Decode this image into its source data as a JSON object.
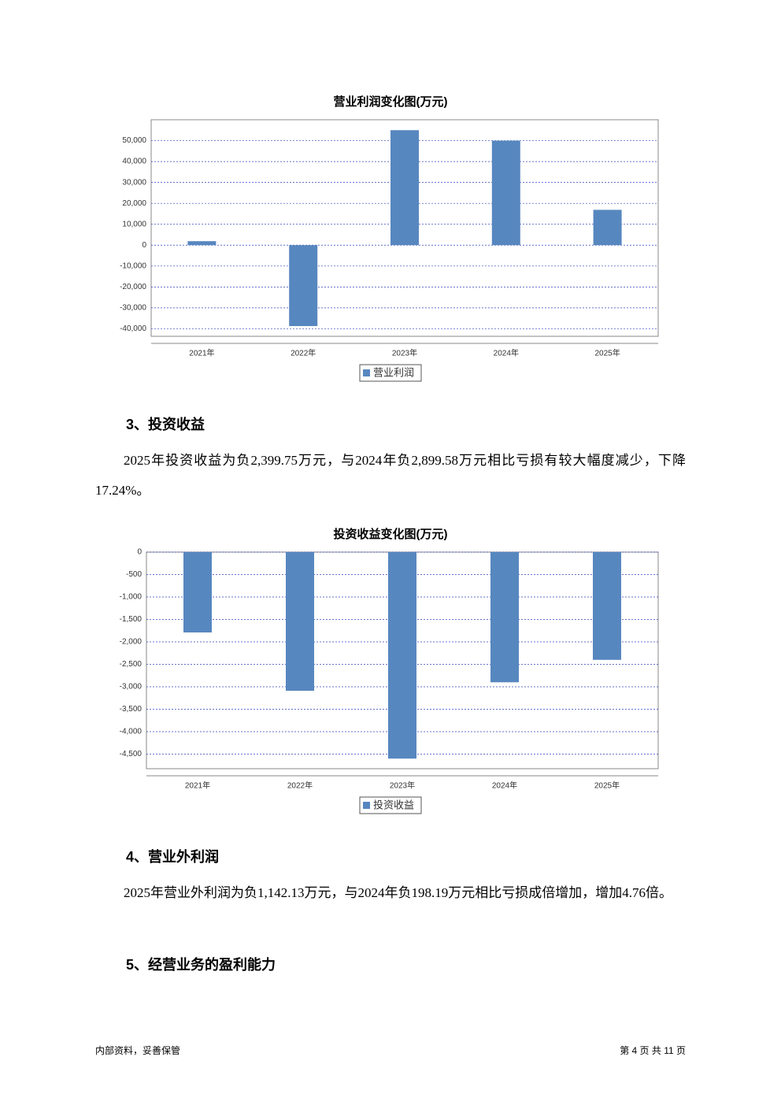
{
  "chart_data": [
    {
      "type": "bar",
      "title": "营业利润变化图(万元)",
      "categories": [
        "2021年",
        "2022年",
        "2023年",
        "2024年",
        "2025年"
      ],
      "series": [
        {
          "name": "营业利润",
          "color": "#5787bf",
          "values": [
            1900,
            -38700,
            55000,
            50000,
            16900
          ]
        }
      ],
      "ylim": [
        -43600,
        60000
      ],
      "yticks": [
        {
          "value": -40000,
          "label": "-40,000"
        },
        {
          "value": -30000,
          "label": "-30,000"
        },
        {
          "value": -20000,
          "label": "-20,000"
        },
        {
          "value": -10000,
          "label": "-10,000"
        },
        0,
        {
          "value": 10000,
          "label": "10,000"
        },
        {
          "value": 20000,
          "label": "20,000"
        },
        {
          "value": 30000,
          "label": "30,000"
        },
        {
          "value": 40000,
          "label": "40,000"
        },
        {
          "value": 50000,
          "label": "50,000"
        }
      ],
      "grid": true
    },
    {
      "type": "bar",
      "title": "投资收益变化图(万元)",
      "categories": [
        "2021年",
        "2022年",
        "2023年",
        "2024年",
        "2025年"
      ],
      "series": [
        {
          "name": "投资收益",
          "color": "#5787bf",
          "values": [
            -1790,
            -3090,
            -4600,
            -2900,
            -2400
          ]
        }
      ],
      "ylim": [
        -4825,
        0
      ],
      "yticks": [
        {
          "value": -4500,
          "label": "-4,500"
        },
        {
          "value": -4000,
          "label": "-4,000"
        },
        {
          "value": -3500,
          "label": "-3,500"
        },
        {
          "value": -3000,
          "label": "-3,000"
        },
        {
          "value": -2500,
          "label": "-2,500"
        },
        {
          "value": -2000,
          "label": "-2,000"
        },
        {
          "value": -1500,
          "label": "-1,500"
        },
        {
          "value": -1000,
          "label": "-1,000"
        },
        -500,
        0
      ],
      "grid": true
    }
  ],
  "sections": [
    {
      "heading": "3、投资收益",
      "text": "2025年投资收益为负2,399.75万元，与2024年负2,899.58万元相比亏损有较大幅度减少，下降17.24%。"
    },
    {
      "heading": "4、营业外利润",
      "text": "2025年营业外利润为负1,142.13万元，与2024年负198.19万元相比亏损成倍增加，增加4.76倍。"
    },
    {
      "heading": "5、经营业务的盈利能力"
    }
  ],
  "footer": {
    "left": "内部资料，妥善保管",
    "right": "第 4 页  共 11 页"
  }
}
